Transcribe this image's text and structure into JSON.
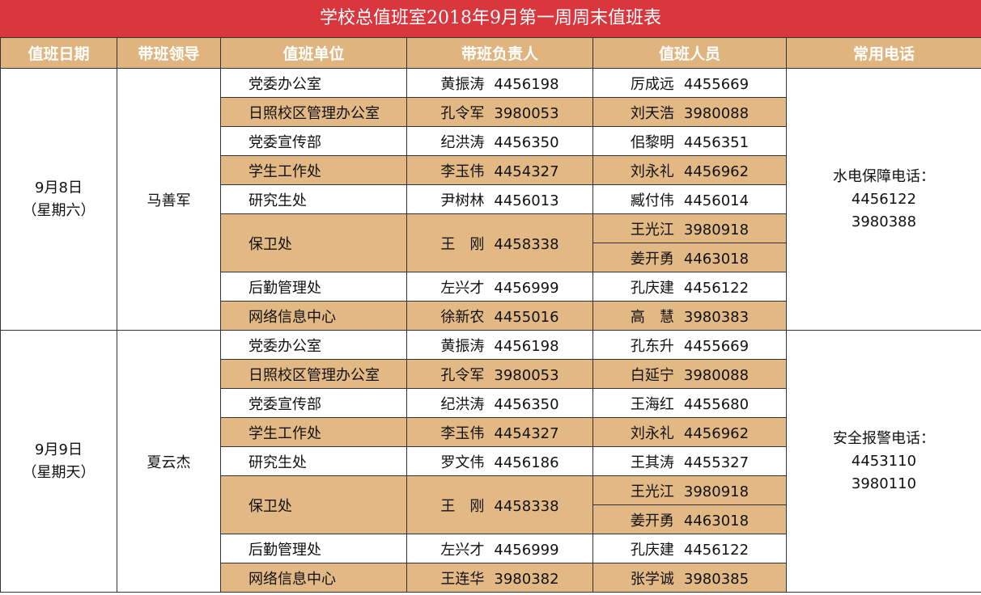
{
  "title": "学校总值班室2018年9月第一周周末值班表",
  "headers": [
    "值班日期",
    "带班领导",
    "值班单位",
    "带班负责人",
    "值班人员",
    "常用电话"
  ],
  "days": [
    {
      "date": "9月8日",
      "weekday": "（星期六）",
      "leader": "马善军",
      "phone_label": "水电保障电话：",
      "phones": [
        "4456122",
        "3980388"
      ],
      "rows": [
        {
          "unit": "党委办公室",
          "head": "黄振涛",
          "head_phone": "4456198",
          "staff": [
            {
              "name": "厉成远",
              "phone": "4455669"
            }
          ]
        },
        {
          "unit": "日照校区管理办公室",
          "head": "孔令军",
          "head_phone": "3980053",
          "staff": [
            {
              "name": "刘天浩",
              "phone": "3980088"
            }
          ]
        },
        {
          "unit": "党委宣传部",
          "head": "纪洪涛",
          "head_phone": "4456350",
          "staff": [
            {
              "name": "佀黎明",
              "phone": "4456351"
            }
          ]
        },
        {
          "unit": "学生工作处",
          "head": "李玉伟",
          "head_phone": "4454327",
          "staff": [
            {
              "name": "刘永礼",
              "phone": "4456962"
            }
          ]
        },
        {
          "unit": "研究生处",
          "head": "尹树林",
          "head_phone": "4456013",
          "staff": [
            {
              "name": "臧付伟",
              "phone": "4456014"
            }
          ]
        },
        {
          "unit": "保卫处",
          "head": "王　刚",
          "head_phone": "4458338",
          "staff": [
            {
              "name": "王光江",
              "phone": "3980918"
            },
            {
              "name": "姜开勇",
              "phone": "4463018"
            }
          ]
        },
        {
          "unit": "后勤管理处",
          "head": "左兴才",
          "head_phone": "4456999",
          "staff": [
            {
              "name": "孔庆建",
              "phone": "4456122"
            }
          ]
        },
        {
          "unit": "网络信息中心",
          "head": "徐新农",
          "head_phone": "4455016",
          "staff": [
            {
              "name": "高　慧",
              "phone": "3980383"
            }
          ]
        }
      ]
    },
    {
      "date": "9月9日",
      "weekday": "（星期天）",
      "leader": "夏云杰",
      "phone_label": "安全报警电话：",
      "phones": [
        "4453110",
        "3980110"
      ],
      "rows": [
        {
          "unit": "党委办公室",
          "head": "黄振涛",
          "head_phone": "4456198",
          "staff": [
            {
              "name": "孔东升",
              "phone": "4455669"
            }
          ]
        },
        {
          "unit": "日照校区管理办公室",
          "head": "孔令军",
          "head_phone": "3980053",
          "staff": [
            {
              "name": "白延宁",
              "phone": "3980088"
            }
          ]
        },
        {
          "unit": "党委宣传部",
          "head": "纪洪涛",
          "head_phone": "4456350",
          "staff": [
            {
              "name": "王海红",
              "phone": "4455680"
            }
          ]
        },
        {
          "unit": "学生工作处",
          "head": "李玉伟",
          "head_phone": "4454327",
          "staff": [
            {
              "name": "刘永礼",
              "phone": "4456962"
            }
          ]
        },
        {
          "unit": "研究生处",
          "head": "罗文伟",
          "head_phone": "4456186",
          "staff": [
            {
              "name": "王其涛",
              "phone": "4455327"
            }
          ]
        },
        {
          "unit": "保卫处",
          "head": "王　刚",
          "head_phone": "4458338",
          "staff": [
            {
              "name": "王光江",
              "phone": "3980918"
            },
            {
              "name": "姜开勇",
              "phone": "4463018"
            }
          ]
        },
        {
          "unit": "后勤管理处",
          "head": "左兴才",
          "head_phone": "4456999",
          "staff": [
            {
              "name": "孔庆建",
              "phone": "4456122"
            }
          ]
        },
        {
          "unit": "网络信息中心",
          "head": "王连华",
          "head_phone": "3980382",
          "staff": [
            {
              "name": "张学诚",
              "phone": "3980385"
            }
          ]
        }
      ]
    }
  ],
  "colors": {
    "title_bg": "#d9363e",
    "header_bg": "#dfb47e",
    "stripe": "#e2b985"
  }
}
